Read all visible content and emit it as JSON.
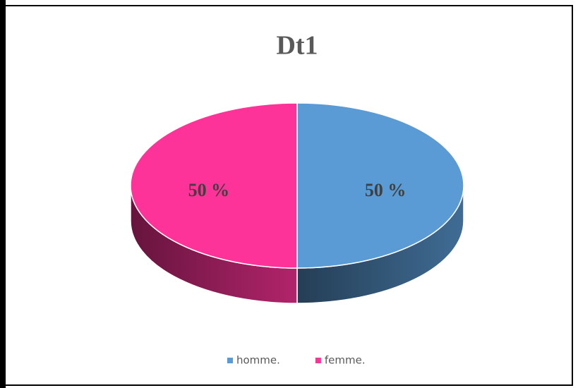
{
  "chart_data": {
    "type": "pie",
    "title": "Dt1",
    "categories": [
      "homme.",
      "femme."
    ],
    "values": [
      50,
      50
    ],
    "value_labels": [
      "50 %",
      "50 %"
    ],
    "colors": [
      "#5b9bd5",
      "#fe3399"
    ],
    "legend": "bottom"
  }
}
